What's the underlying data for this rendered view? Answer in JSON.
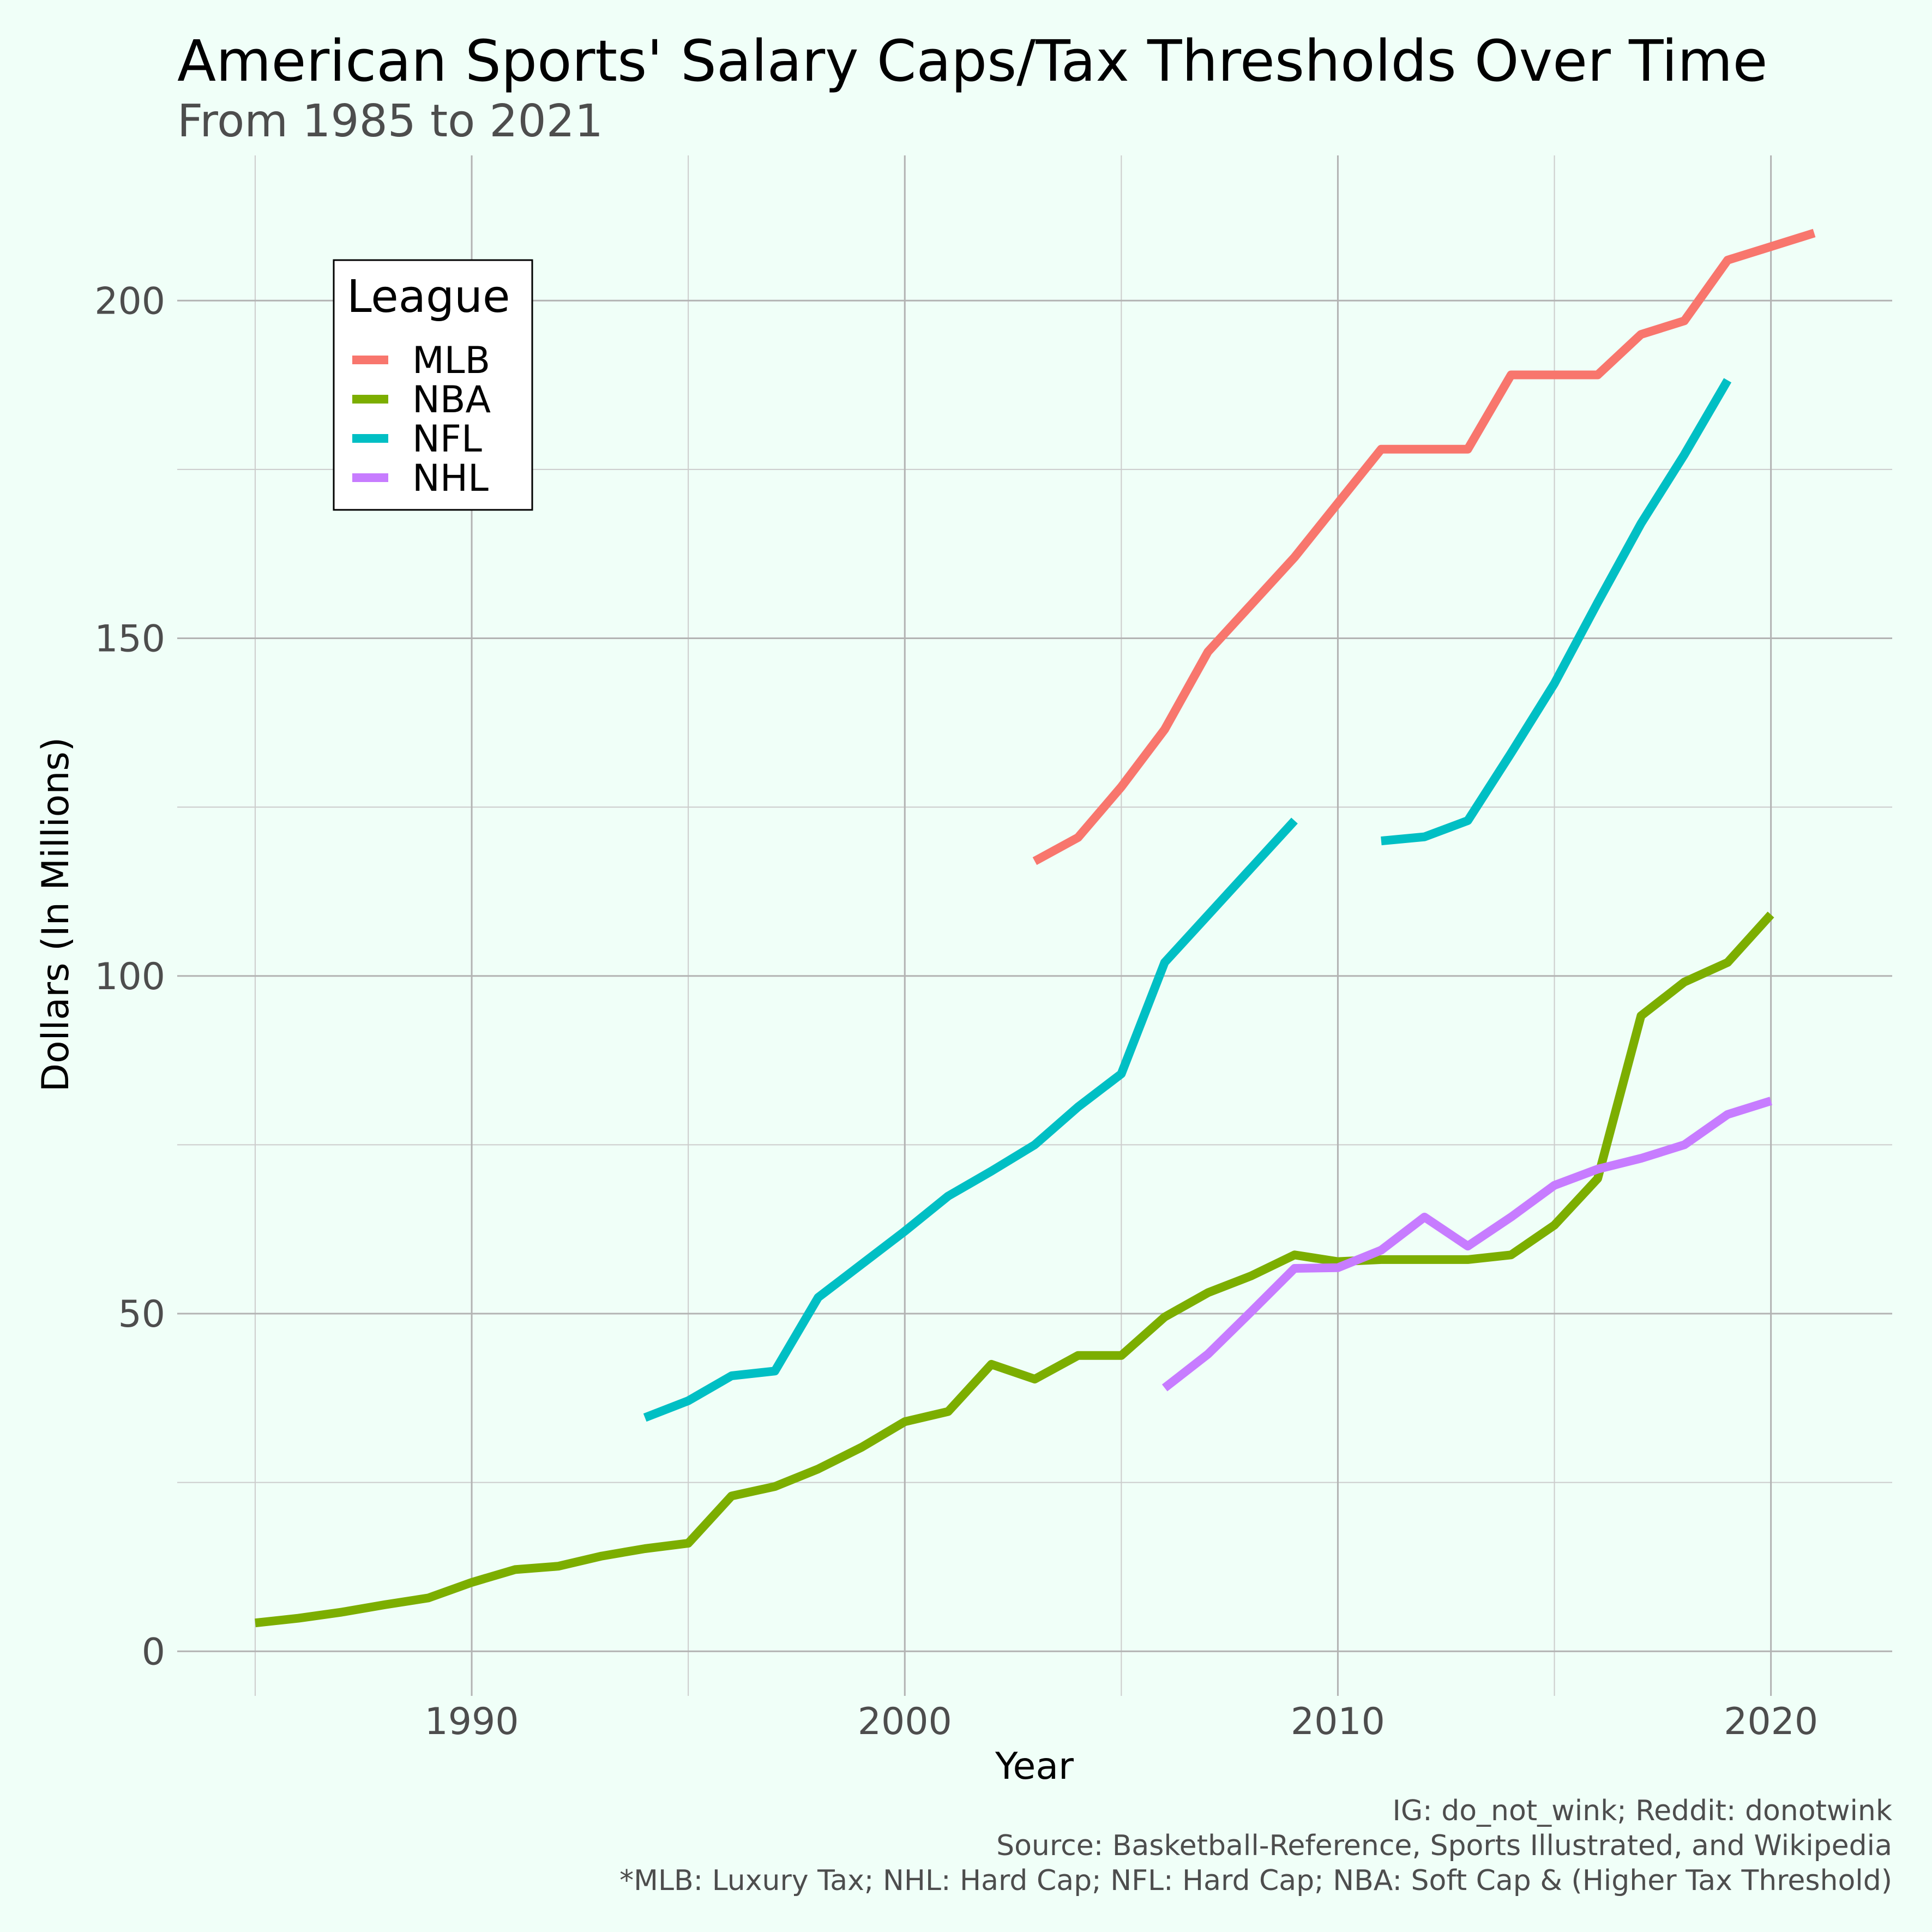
{
  "title": "American Sports' Salary Caps/Tax Thresholds Over Time",
  "subtitle": "From 1985 to 2021",
  "caption": [
    "IG: do_not_wink; Reddit: donotwink",
    "Source: Basketball-Reference, Sports Illustrated, and Wikipedia",
    "*MLB: Luxury Tax; NHL: Hard Cap; NFL: Hard Cap; NBA: Soft Cap & (Higher Tax Threshold)"
  ],
  "chart_data": {
    "type": "line",
    "title": "American Sports' Salary Caps/Tax Thresholds Over Time",
    "subtitle": "From 1985 to 2021",
    "xlabel": "Year",
    "ylabel": "Dollars (In Millions)",
    "xlim": [
      1983.2,
      2022.8
    ],
    "ylim": [
      -6.6,
      221.5
    ],
    "x_ticks": [
      1990,
      2000,
      2010,
      2020
    ],
    "y_ticks": [
      0,
      50,
      100,
      150,
      200
    ],
    "grid": true,
    "legend": {
      "title": "League",
      "position": "top-left"
    },
    "series": [
      {
        "name": "MLB",
        "color": "#F8766D",
        "x": [
          2003,
          2004,
          2005,
          2006,
          2007,
          2008,
          2009,
          2010,
          2011,
          2012,
          2013,
          2014,
          2015,
          2016,
          2017,
          2018,
          2019,
          2020,
          2021
        ],
        "y": [
          117,
          120.5,
          128,
          136.5,
          148,
          155,
          162,
          170,
          178,
          178,
          178,
          189,
          189,
          189,
          195,
          197,
          206,
          208,
          210
        ]
      },
      {
        "name": "NBA",
        "color": "#7CAE00",
        "x": [
          1985,
          1986,
          1987,
          1988,
          1989,
          1990,
          1991,
          1992,
          1993,
          1994,
          1995,
          1996,
          1997,
          1998,
          1999,
          2000,
          2001,
          2002,
          2003,
          2004,
          2005,
          2006,
          2007,
          2008,
          2009,
          2010,
          2011,
          2012,
          2013,
          2014,
          2015,
          2016,
          2017,
          2018,
          2019,
          2020
        ],
        "y": [
          4.2,
          4.9,
          5.8,
          6.9,
          7.9,
          10.2,
          12.1,
          12.6,
          14.1,
          15.2,
          16.0,
          23.0,
          24.4,
          27.0,
          30.2,
          34.0,
          35.5,
          42.5,
          40.3,
          43.8,
          43.8,
          49.5,
          53.1,
          55.6,
          58.7,
          57.7,
          58.0,
          58.0,
          58.0,
          58.7,
          63.1,
          70.0,
          94.1,
          99.1,
          102.0,
          109.1
        ]
      },
      {
        "name": "NFL",
        "color": "#00BFC4",
        "x": [
          1994,
          1995,
          1996,
          1997,
          1998,
          1999,
          2000,
          2001,
          2002,
          2003,
          2004,
          2005,
          2006,
          2007,
          2008,
          2009
        ],
        "y": [
          34.6,
          37.1,
          40.8,
          41.5,
          52.4,
          57.3,
          62.2,
          67.4,
          71.1,
          75.0,
          80.6,
          85.5,
          102.0,
          109.0,
          116.0,
          123.0
        ]
      },
      {
        "name": "NFL",
        "color": "#00BFC4",
        "legend": false,
        "x": [
          2011,
          2012,
          2013,
          2014,
          2015,
          2016,
          2017,
          2018,
          2019
        ],
        "y": [
          120.0,
          120.6,
          123.0,
          133.0,
          143.3,
          155.3,
          167.0,
          177.2,
          188.2
        ]
      },
      {
        "name": "NHL",
        "color": "#C77CFF",
        "x": [
          2006,
          2007,
          2008,
          2009,
          2010,
          2011,
          2012,
          2013,
          2014,
          2015,
          2016,
          2017,
          2018,
          2019,
          2020
        ],
        "y": [
          39,
          44,
          50.3,
          56.7,
          56.8,
          59.4,
          64.3,
          60.0,
          64.3,
          69.0,
          71.4,
          73.0,
          75.0,
          79.5,
          81.5
        ]
      }
    ]
  }
}
